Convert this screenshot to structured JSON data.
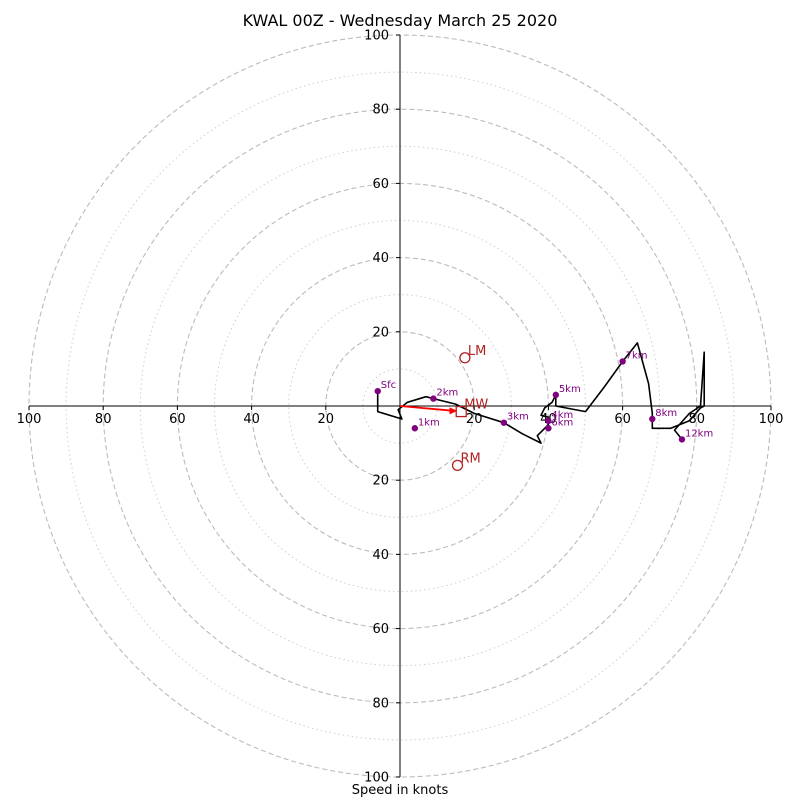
{
  "chart_data": {
    "type": "hodograph",
    "title": "KWAL 00Z - Wednesday March 25 2020",
    "xlabel": "Speed in knots",
    "axis_range": [
      -100,
      100
    ],
    "ring_major": [
      20,
      40,
      60,
      80,
      100
    ],
    "ring_minor": [
      10,
      30,
      50,
      70,
      90
    ],
    "x_tick_values": [
      -100,
      -80,
      -60,
      -40,
      -20,
      20,
      40,
      60,
      80,
      100
    ],
    "x_tick_labels": [
      "100",
      "80",
      "60",
      "40",
      "20",
      "20",
      "40",
      "60",
      "80",
      "100"
    ],
    "y_tick_values": [
      100,
      80,
      60,
      40,
      20,
      -20,
      -40,
      -60,
      -80,
      -100
    ],
    "y_tick_labels": [
      "100",
      "80",
      "60",
      "40",
      "20",
      "20",
      "40",
      "60",
      "80",
      "100"
    ],
    "grid": true,
    "colors": {
      "trace": "#000000",
      "height_marker": "#800080",
      "storm_motion": "#b22222",
      "mean_wind_vector": "#ff0000",
      "grid": "#bbbbbb"
    },
    "trace_uv": [
      [
        -6,
        4
      ],
      [
        -6,
        -1.5
      ],
      [
        0.5,
        -3.5
      ],
      [
        -0.5,
        -1
      ],
      [
        2,
        1
      ],
      [
        7,
        2.5
      ],
      [
        9,
        2
      ],
      [
        15,
        0.5
      ],
      [
        20,
        -2
      ],
      [
        28,
        -4.5
      ],
      [
        33,
        -7.5
      ],
      [
        38,
        -10
      ],
      [
        37,
        -8
      ],
      [
        39,
        -6
      ],
      [
        40,
        -5
      ],
      [
        40,
        -3
      ],
      [
        38,
        -2.5
      ],
      [
        39,
        -0.5
      ],
      [
        41,
        1
      ],
      [
        42,
        3
      ],
      [
        42,
        0
      ],
      [
        50,
        -1.5
      ],
      [
        55,
        5
      ],
      [
        60,
        12
      ],
      [
        64,
        17
      ],
      [
        67,
        6
      ],
      [
        68,
        -2
      ],
      [
        68,
        -6
      ],
      [
        73,
        -6
      ],
      [
        78,
        -4
      ],
      [
        81,
        -0.5
      ],
      [
        82,
        0
      ],
      [
        82,
        14.5
      ],
      [
        81,
        0
      ],
      [
        78,
        -2
      ],
      [
        74,
        -6.5
      ],
      [
        76,
        -9
      ]
    ],
    "height_markers": [
      {
        "label": "Sfc",
        "u": -6,
        "v": 4
      },
      {
        "label": "1km",
        "u": 4,
        "v": -6
      },
      {
        "label": "2km",
        "u": 9,
        "v": 2
      },
      {
        "label": "3km",
        "u": 28,
        "v": -4.5
      },
      {
        "label": "4km",
        "u": 40,
        "v": -4
      },
      {
        "label": "5km",
        "u": 42,
        "v": 3
      },
      {
        "label": "6km",
        "u": 40,
        "v": -6
      },
      {
        "label": "7km",
        "u": 60,
        "v": 12
      },
      {
        "label": "8km",
        "u": 68,
        "v": -3.5
      },
      {
        "label": "12km",
        "u": 76,
        "v": -9
      }
    ],
    "storm_motion": [
      {
        "label": "LM",
        "marker": "circle",
        "u": 17.5,
        "v": 13
      },
      {
        "label": "RM",
        "marker": "circle",
        "u": 15.5,
        "v": -16
      },
      {
        "label": "MW",
        "marker": "square",
        "u": 16.5,
        "v": -1.5
      }
    ],
    "mean_wind_vector": {
      "u": 15.5,
      "v": -1.3
    }
  }
}
